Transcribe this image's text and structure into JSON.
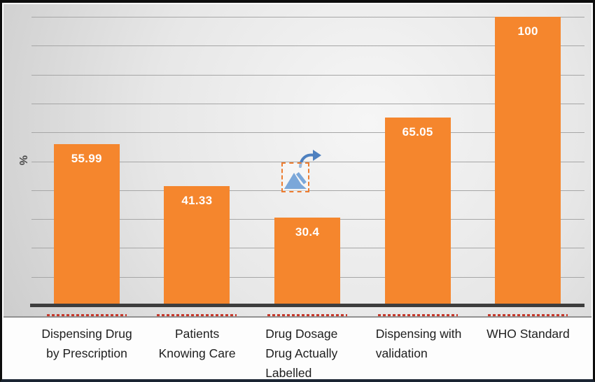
{
  "chart_data": {
    "type": "bar",
    "title": "",
    "xlabel": "",
    "ylabel": "%",
    "ylim": [
      0,
      100
    ],
    "gridline_step": 10,
    "grid": true,
    "legend_position": "none",
    "categories": [
      "Dispensing Drug by Prescription",
      "Patients Knowing Care",
      "Drug Dosage Drug Actually Labelled",
      "Dispensing with validation",
      "WHO Standard"
    ],
    "values": [
      55.99,
      41.33,
      30.4,
      65.05,
      100
    ],
    "value_labels": [
      "55.99",
      "41.33",
      "30.4",
      "65.05",
      "100"
    ],
    "category_labels": [
      {
        "lines": [
          "Dispensing Drug",
          "by Prescription"
        ],
        "align": "center"
      },
      {
        "lines": [
          "Patients",
          "Knowing Care"
        ],
        "align": "center"
      },
      {
        "lines": [
          "Drug Dosage",
          "Drug Actually",
          "Labelled"
        ],
        "align": "left"
      },
      {
        "lines": [
          "Dispensing with",
          "validation"
        ],
        "align": "left"
      },
      {
        "lines": [
          "WHO Standard"
        ],
        "align": "center"
      }
    ]
  },
  "icons": {
    "broken_image_icon": "image-placeholder-mountain",
    "redo_arrow_icon": "curved-redo-arrow"
  },
  "colors": {
    "bar": "#F5862D",
    "bar_label": "#FFFFFF",
    "axis_line": "#3D3D3D",
    "gridline": "#A6A6A6",
    "plot_bg_light": "#F6F6F6",
    "plot_bg_dark": "#CDCDCD",
    "category_text": "#1E1E1E",
    "ylabel_text": "#4A4A4A",
    "red_underline": "#C5392C",
    "frame_border": "#0D0D0D",
    "frame_border_bottom": "#1B2533",
    "placeholder_border": "#ED7D31",
    "placeholder_blue": "#7BA7D9",
    "placeholder_arrow": "#4E80BF"
  }
}
